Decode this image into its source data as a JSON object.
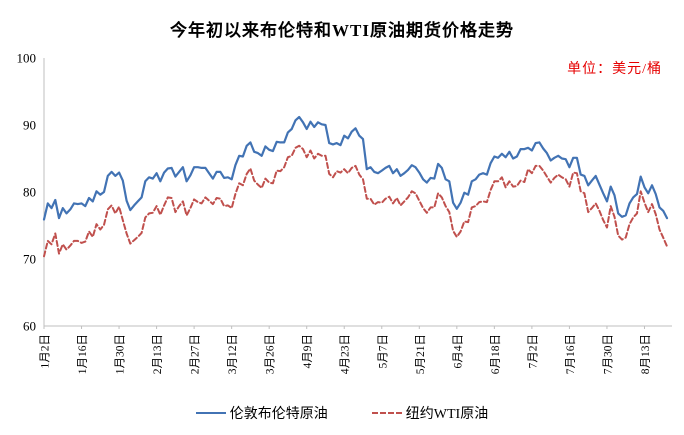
{
  "title": "今年初以来布伦特和WTI原油期货价格走势",
  "unit_label": "单位：美元/桶",
  "colors": {
    "brent_line": "#4273b4",
    "wti_line": "#c0504d",
    "axis": "#bfbfbf",
    "axis_text": "#000000",
    "unit_text": "#e60000",
    "background": "#ffffff"
  },
  "chart_data": {
    "type": "line",
    "title": "今年初以来布伦特和WTI原油期货价格走势",
    "ylabel": "美元/桶",
    "ylim": [
      60,
      100
    ],
    "y_ticks": [
      60,
      70,
      80,
      90,
      100
    ],
    "grid": false,
    "legend_position": "bottom",
    "x_tick_labels": [
      "1月2日",
      "1月16日",
      "1月30日",
      "2月13日",
      "2月27日",
      "3月12日",
      "3月26日",
      "4月9日",
      "4月23日",
      "5月7日",
      "5月21日",
      "6月4日",
      "6月18日",
      "7月2日",
      "7月16日",
      "7月30日",
      "8月13日"
    ],
    "x_tick_indices": [
      0,
      10,
      20,
      30,
      40,
      50,
      60,
      70,
      80,
      90,
      100,
      110,
      120,
      130,
      140,
      150,
      160
    ],
    "series": [
      {
        "name": "伦敦布伦特原油",
        "color": "#4273b4",
        "line_style": "solid",
        "values": [
          75.9,
          78.3,
          77.6,
          78.8,
          76.1,
          77.6,
          76.8,
          77.4,
          78.3,
          78.2,
          78.3,
          77.9,
          79.1,
          78.6,
          80.1,
          79.6,
          80.0,
          82.4,
          83.0,
          82.4,
          82.9,
          81.7,
          78.7,
          77.3,
          78.0,
          78.6,
          79.2,
          81.6,
          82.2,
          82.0,
          82.8,
          81.6,
          82.9,
          83.5,
          83.6,
          82.3,
          83.0,
          83.7,
          81.6,
          82.5,
          83.7,
          83.7,
          83.6,
          83.6,
          82.8,
          82.0,
          83.0,
          83.0,
          82.1,
          82.2,
          81.9,
          84.0,
          85.4,
          85.3,
          86.9,
          87.4,
          86.0,
          85.8,
          85.4,
          86.8,
          86.3,
          86.1,
          87.5,
          87.4,
          87.4,
          88.9,
          89.4,
          90.7,
          91.2,
          90.4,
          89.4,
          90.5,
          89.7,
          90.4,
          90.1,
          90.0,
          87.3,
          87.1,
          87.3,
          87.0,
          88.4,
          88.0,
          89.0,
          89.5,
          88.4,
          87.9,
          83.4,
          83.7,
          83.0,
          82.8,
          83.2,
          83.6,
          83.9,
          82.8,
          83.4,
          82.4,
          82.8,
          83.3,
          84.0,
          83.7,
          82.9,
          81.9,
          81.4,
          82.1,
          82.0,
          84.2,
          83.6,
          81.9,
          81.6,
          78.4,
          77.5,
          78.4,
          79.9,
          79.6,
          81.6,
          81.9,
          82.6,
          82.8,
          82.6,
          84.3,
          85.3,
          85.1,
          85.7,
          85.2,
          86.0,
          85.0,
          85.3,
          86.4,
          86.4,
          86.6,
          86.2,
          87.3,
          87.4,
          86.5,
          85.8,
          84.7,
          85.1,
          85.4,
          85.0,
          84.9,
          83.7,
          85.1,
          85.1,
          82.6,
          82.4,
          81.0,
          81.7,
          82.4,
          81.1,
          79.8,
          78.6,
          80.8,
          79.5,
          76.8,
          76.3,
          76.5,
          78.3,
          79.2,
          79.7,
          82.3,
          80.7,
          79.8,
          81.0,
          79.7,
          77.7,
          77.2,
          76.1
        ]
      },
      {
        "name": "纽约WTI原油",
        "color": "#c0504d",
        "line_style": "dashed",
        "values": [
          70.4,
          72.7,
          72.2,
          73.8,
          70.8,
          72.2,
          71.4,
          72.0,
          72.7,
          72.7,
          72.4,
          72.6,
          74.1,
          73.3,
          75.2,
          74.4,
          75.1,
          77.4,
          78.0,
          76.8,
          77.8,
          75.8,
          73.8,
          72.3,
          72.8,
          73.3,
          73.9,
          76.2,
          76.8,
          76.9,
          77.9,
          76.6,
          78.0,
          79.2,
          79.1,
          77.0,
          77.9,
          78.6,
          76.5,
          77.6,
          78.9,
          78.5,
          78.3,
          79.2,
          78.7,
          78.2,
          79.1,
          79.0,
          77.9,
          78.0,
          77.6,
          79.7,
          81.3,
          81.0,
          82.7,
          83.5,
          81.7,
          81.1,
          80.6,
          82.0,
          81.4,
          81.3,
          83.2,
          83.1,
          83.7,
          85.2,
          85.4,
          86.6,
          86.9,
          86.4,
          85.2,
          86.2,
          85.0,
          85.7,
          85.4,
          85.4,
          82.7,
          82.2,
          83.1,
          82.9,
          83.4,
          82.8,
          83.6,
          83.9,
          82.6,
          81.9,
          79.0,
          79.0,
          78.1,
          78.5,
          78.4,
          79.0,
          79.3,
          78.3,
          79.1,
          78.0,
          78.6,
          79.2,
          80.1,
          79.8,
          78.7,
          77.6,
          76.9,
          77.7,
          77.7,
          79.8,
          79.2,
          77.9,
          77.0,
          74.2,
          73.3,
          74.1,
          75.6,
          75.5,
          77.7,
          77.9,
          78.5,
          78.6,
          78.5,
          80.3,
          81.6,
          81.6,
          82.2,
          80.7,
          81.6,
          80.8,
          80.9,
          81.7,
          81.5,
          83.4,
          82.8,
          83.9,
          83.9,
          83.2,
          82.3,
          81.4,
          82.1,
          82.6,
          82.2,
          81.9,
          80.8,
          82.9,
          82.8,
          80.1,
          79.8,
          77.0,
          77.6,
          78.3,
          77.2,
          75.8,
          74.7,
          77.9,
          76.3,
          73.5,
          72.9,
          73.2,
          75.2,
          76.2,
          76.8,
          80.1,
          78.4,
          77.0,
          78.2,
          76.7,
          74.4,
          73.2,
          71.9
        ]
      }
    ]
  }
}
